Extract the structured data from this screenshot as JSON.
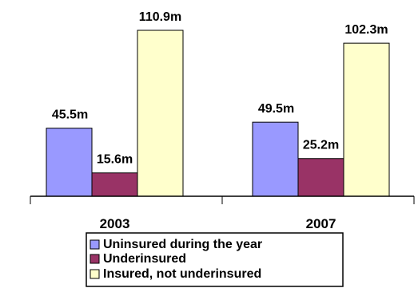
{
  "chart_data": {
    "type": "bar",
    "categories": [
      "2003",
      "2007"
    ],
    "series": [
      {
        "name": "Uninsured during the year",
        "values": [
          45.5,
          49.5
        ],
        "labels": [
          "45.5m",
          "49.5m"
        ],
        "color": "#9999ff"
      },
      {
        "name": "Underinsured",
        "values": [
          15.6,
          25.2
        ],
        "labels": [
          "15.6m",
          "25.2m"
        ],
        "color": "#993366"
      },
      {
        "name": "Insured, not underinsured",
        "values": [
          110.9,
          102.3
        ],
        "labels": [
          "110.9m",
          "102.3m"
        ],
        "color": "#ffffcc"
      }
    ],
    "ylim": [
      0,
      120
    ],
    "grid": false,
    "legend": "bottom",
    "title": "",
    "xlabel": "",
    "ylabel": ""
  }
}
